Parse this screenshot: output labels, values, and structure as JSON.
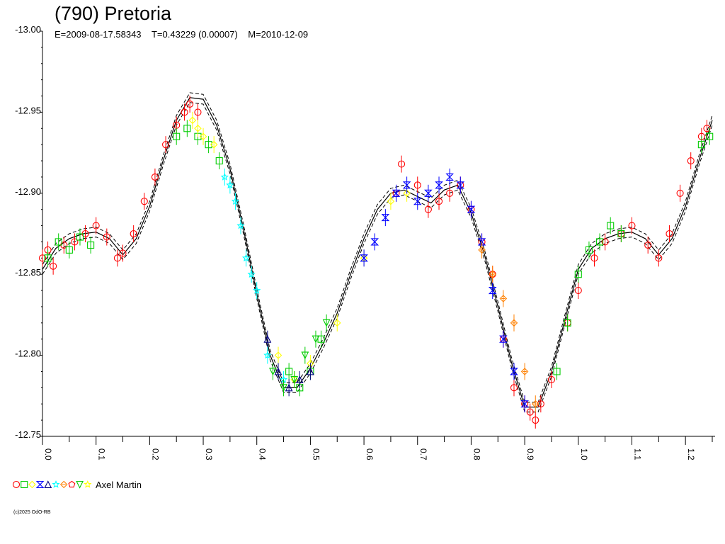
{
  "header": {
    "title": "(790) Pretoria",
    "epoch": "E=2009-08-17.58343",
    "period": "T=0.43229 (0.00007)",
    "model_date": "M=2010-12-09"
  },
  "legend": {
    "observer": "Axel Martin",
    "symbols": [
      {
        "shape": "circle",
        "color": "#ff0000"
      },
      {
        "shape": "square",
        "color": "#00cc00"
      },
      {
        "shape": "diamond",
        "color": "#ffff00"
      },
      {
        "shape": "hourglass",
        "color": "#0000ff"
      },
      {
        "shape": "triangle",
        "color": "#000080"
      },
      {
        "shape": "star",
        "color": "#00ffff"
      },
      {
        "shape": "diamond-x",
        "color": "#ff8000"
      },
      {
        "shape": "pentagon",
        "color": "#ff0000"
      },
      {
        "shape": "triangle-down",
        "color": "#00cc00"
      },
      {
        "shape": "star",
        "color": "#ffff00"
      }
    ]
  },
  "copyright": "(c)2025 OdO-RB",
  "chart_data": {
    "type": "scatter",
    "xlim": [
      0.0,
      1.25
    ],
    "ylim": [
      -13.0,
      -12.75
    ],
    "y_inverted": true,
    "x_ticks": [
      "0.0",
      "0.1",
      "0.2",
      "0.3",
      "0.4",
      "0.5",
      "0.6",
      "0.7",
      "0.8",
      "0.9",
      "1.0",
      "1.1",
      "1.2"
    ],
    "x_tick_values": [
      0.0,
      0.1,
      0.2,
      0.3,
      0.4,
      0.5,
      0.6,
      0.7,
      0.8,
      0.9,
      1.0,
      1.1,
      1.2
    ],
    "y_ticks": [
      "-13.00",
      "-12.95",
      "-12.90",
      "-12.85",
      "-12.80",
      "-12.75"
    ],
    "y_tick_values": [
      -13.0,
      -12.95,
      -12.9,
      -12.85,
      -12.8,
      -12.75
    ],
    "model_curve": {
      "x": [
        0.0,
        0.025,
        0.05,
        0.075,
        0.1,
        0.125,
        0.15,
        0.175,
        0.2,
        0.225,
        0.25,
        0.275,
        0.3,
        0.325,
        0.35,
        0.375,
        0.4,
        0.425,
        0.45,
        0.475,
        0.5,
        0.525,
        0.55,
        0.575,
        0.6,
        0.625,
        0.65,
        0.675,
        0.7,
        0.725,
        0.75,
        0.775,
        0.8,
        0.825,
        0.85,
        0.875,
        0.9,
        0.925,
        0.95,
        0.975,
        1.0,
        1.025,
        1.05,
        1.075,
        1.1,
        1.125,
        1.15,
        1.175,
        1.2,
        1.225,
        1.25
      ],
      "y": [
        -12.853,
        -12.866,
        -12.872,
        -12.875,
        -12.876,
        -12.872,
        -12.862,
        -12.872,
        -12.892,
        -12.92,
        -12.945,
        -12.959,
        -12.958,
        -12.942,
        -12.915,
        -12.878,
        -12.838,
        -12.8,
        -12.78,
        -12.78,
        -12.792,
        -12.808,
        -12.826,
        -12.85,
        -12.872,
        -12.89,
        -12.9,
        -12.902,
        -12.898,
        -12.894,
        -12.902,
        -12.905,
        -12.888,
        -12.862,
        -12.83,
        -12.796,
        -12.768,
        -12.768,
        -12.79,
        -12.822,
        -12.853,
        -12.866,
        -12.872,
        -12.875,
        -12.876,
        -12.872,
        -12.862,
        -12.872,
        -12.892,
        -12.92,
        -12.945
      ],
      "band_offset": 0.003,
      "color": "#000000"
    },
    "series": [
      {
        "symbol": "circle",
        "color": "#ff0000",
        "x": [
          0.0,
          0.01,
          0.02,
          0.04,
          0.06,
          0.08,
          0.1,
          0.12,
          0.14,
          0.15,
          0.17,
          0.19,
          0.21,
          0.23,
          0.25,
          0.265,
          0.275,
          0.29,
          0.66,
          0.67,
          0.7,
          0.72,
          0.74,
          0.76,
          0.78,
          0.8,
          0.82,
          0.84,
          0.86,
          0.88,
          0.9,
          0.91,
          0.92,
          0.93,
          0.95,
          0.98,
          1.0,
          1.03,
          1.05,
          1.08,
          1.1,
          1.13,
          1.15,
          1.17,
          1.19,
          1.21,
          1.23,
          1.24
        ],
        "y": [
          -12.86,
          -12.865,
          -12.855,
          -12.868,
          -12.87,
          -12.875,
          -12.88,
          -12.873,
          -12.86,
          -12.863,
          -12.875,
          -12.895,
          -12.91,
          -12.93,
          -12.942,
          -12.95,
          -12.955,
          -12.95,
          -12.9,
          -12.918,
          -12.905,
          -12.89,
          -12.895,
          -12.9,
          -12.905,
          -12.89,
          -12.87,
          -12.85,
          -12.81,
          -12.78,
          -12.77,
          -12.765,
          -12.76,
          -12.77,
          -12.785,
          -12.82,
          -12.84,
          -12.86,
          -12.87,
          -12.875,
          -12.88,
          -12.868,
          -12.86,
          -12.875,
          -12.9,
          -12.92,
          -12.935,
          -12.94
        ]
      },
      {
        "symbol": "square",
        "color": "#00cc00",
        "x": [
          0.01,
          0.03,
          0.05,
          0.07,
          0.09,
          0.25,
          0.27,
          0.29,
          0.31,
          0.33,
          0.46,
          0.48,
          0.5,
          0.52,
          0.96,
          0.98,
          1.0,
          1.02,
          1.04,
          1.06,
          1.08,
          1.23,
          1.245
        ],
        "y": [
          -12.86,
          -12.87,
          -12.865,
          -12.873,
          -12.868,
          -12.935,
          -12.94,
          -12.935,
          -12.93,
          -12.92,
          -12.79,
          -12.78,
          -12.79,
          -12.81,
          -12.79,
          -12.82,
          -12.85,
          -12.865,
          -12.87,
          -12.88,
          -12.875,
          -12.93,
          -12.935
        ]
      },
      {
        "symbol": "diamond",
        "color": "#ffff00",
        "x": [
          0.28,
          0.29,
          0.3,
          0.32,
          0.44,
          0.47,
          0.5,
          0.55,
          0.6,
          0.65,
          0.68
        ],
        "y": [
          -12.945,
          -12.94,
          -12.935,
          -12.93,
          -12.8,
          -12.785,
          -12.795,
          -12.82,
          -12.86,
          -12.895,
          -12.9
        ]
      },
      {
        "symbol": "hourglass",
        "color": "#0000ff",
        "x": [
          0.6,
          0.62,
          0.64,
          0.66,
          0.68,
          0.7,
          0.72,
          0.74,
          0.76,
          0.78,
          0.8,
          0.82,
          0.84,
          0.86,
          0.88,
          0.9
        ],
        "y": [
          -12.86,
          -12.87,
          -12.885,
          -12.9,
          -12.905,
          -12.895,
          -12.9,
          -12.905,
          -12.91,
          -12.905,
          -12.89,
          -12.87,
          -12.84,
          -12.81,
          -12.79,
          -12.77
        ]
      },
      {
        "symbol": "triangle",
        "color": "#000080",
        "x": [
          0.42,
          0.44,
          0.46,
          0.48,
          0.5
        ],
        "y": [
          -12.81,
          -12.79,
          -12.78,
          -12.785,
          -12.79
        ]
      },
      {
        "symbol": "star",
        "color": "#00ffff",
        "x": [
          0.34,
          0.35,
          0.36,
          0.37,
          0.38,
          0.39,
          0.4,
          0.42,
          0.45
        ],
        "y": [
          -12.91,
          -12.905,
          -12.895,
          -12.88,
          -12.86,
          -12.85,
          -12.84,
          -12.8,
          -12.785
        ]
      },
      {
        "symbol": "diamond-x",
        "color": "#ff8000",
        "x": [
          0.82,
          0.84,
          0.86,
          0.88,
          0.9,
          0.92
        ],
        "y": [
          -12.865,
          -12.85,
          -12.835,
          -12.82,
          -12.79,
          -12.77
        ]
      },
      {
        "symbol": "triangle-down",
        "color": "#00cc00",
        "x": [
          0.43,
          0.45,
          0.47,
          0.49,
          0.51,
          0.53
        ],
        "y": [
          -12.79,
          -12.78,
          -12.785,
          -12.8,
          -12.81,
          -12.82
        ]
      }
    ]
  }
}
